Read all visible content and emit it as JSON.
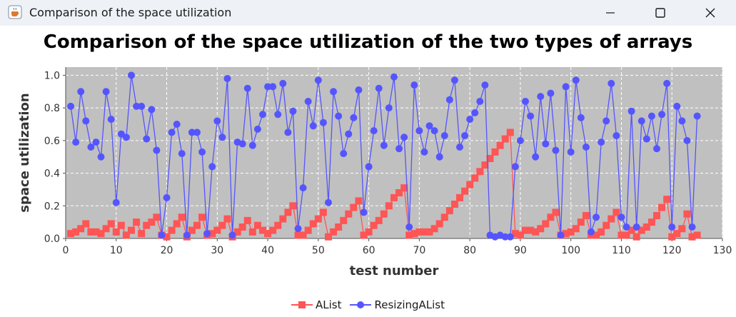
{
  "window": {
    "title": "Comparison of the space utilization",
    "icon": "java-coffee-cup-icon"
  },
  "chart_data": {
    "type": "line",
    "title": "Comparison of the space utilization of the two types of arrays",
    "xlabel": "test number",
    "ylabel": "space utilization",
    "xlim": [
      0,
      130
    ],
    "ylim": [
      0,
      1.05
    ],
    "xticks": [
      0,
      10,
      20,
      30,
      40,
      50,
      60,
      70,
      80,
      90,
      100,
      110,
      120,
      130
    ],
    "yticks": [
      0.0,
      0.2,
      0.4,
      0.6,
      0.8,
      1.0
    ],
    "grid": true,
    "legend_position": "bottom",
    "plot_background": "#c0c0c0",
    "series": [
      {
        "name": "AList",
        "color": "#ff5555",
        "marker": "square",
        "x": [
          1,
          2,
          3,
          4,
          5,
          6,
          7,
          8,
          9,
          10,
          11,
          12,
          13,
          14,
          15,
          16,
          17,
          18,
          19,
          20,
          21,
          22,
          23,
          24,
          25,
          26,
          27,
          28,
          29,
          30,
          31,
          32,
          33,
          34,
          35,
          36,
          37,
          38,
          39,
          40,
          41,
          42,
          43,
          44,
          45,
          46,
          47,
          48,
          49,
          50,
          51,
          52,
          53,
          54,
          55,
          56,
          57,
          58,
          59,
          60,
          61,
          62,
          63,
          64,
          65,
          66,
          67,
          68,
          69,
          70,
          71,
          72,
          73,
          74,
          75,
          76,
          77,
          78,
          79,
          80,
          81,
          82,
          83,
          84,
          85,
          86,
          87,
          88,
          89,
          90,
          91,
          92,
          93,
          94,
          95,
          96,
          97,
          98,
          99,
          100,
          101,
          102,
          103,
          104,
          105,
          106,
          107,
          108,
          109,
          110,
          111,
          112,
          113,
          114,
          115,
          116,
          117,
          118,
          119,
          120,
          121,
          122,
          123,
          124,
          125
        ],
        "values": [
          0.03,
          0.04,
          0.06,
          0.09,
          0.04,
          0.04,
          0.03,
          0.06,
          0.09,
          0.04,
          0.08,
          0.02,
          0.05,
          0.1,
          0.03,
          0.08,
          0.1,
          0.13,
          0.02,
          0.01,
          0.05,
          0.09,
          0.13,
          0.01,
          0.05,
          0.08,
          0.13,
          0.02,
          0.03,
          0.05,
          0.08,
          0.12,
          0.01,
          0.04,
          0.07,
          0.11,
          0.04,
          0.08,
          0.05,
          0.03,
          0.05,
          0.08,
          0.12,
          0.16,
          0.2,
          0.02,
          0.02,
          0.05,
          0.09,
          0.12,
          0.16,
          0.01,
          0.04,
          0.07,
          0.11,
          0.15,
          0.19,
          0.23,
          0.02,
          0.04,
          0.08,
          0.11,
          0.15,
          0.2,
          0.25,
          0.28,
          0.31,
          0.02,
          0.03,
          0.04,
          0.04,
          0.04,
          0.06,
          0.09,
          0.13,
          0.17,
          0.21,
          0.25,
          0.29,
          0.33,
          0.37,
          0.41,
          0.45,
          0.49,
          0.53,
          0.57,
          0.61,
          0.65,
          0.03,
          0.02,
          0.05,
          0.05,
          0.04,
          0.06,
          0.09,
          0.13,
          0.16,
          0.02,
          0.03,
          0.04,
          0.06,
          0.1,
          0.14,
          0.02,
          0.02,
          0.04,
          0.08,
          0.12,
          0.16,
          0.02,
          0.02,
          0.05,
          0.01,
          0.05,
          0.07,
          0.1,
          0.14,
          0.19,
          0.24,
          0.01,
          0.03,
          0.06,
          0.15,
          0.01,
          0.02
        ]
      },
      {
        "name": "ResizingAList",
        "color": "#5555ff",
        "marker": "circle",
        "x": [
          1,
          2,
          3,
          4,
          5,
          6,
          7,
          8,
          9,
          10,
          11,
          12,
          13,
          14,
          15,
          16,
          17,
          18,
          19,
          20,
          21,
          22,
          23,
          24,
          25,
          26,
          27,
          28,
          29,
          30,
          31,
          32,
          33,
          34,
          35,
          36,
          37,
          38,
          39,
          40,
          41,
          42,
          43,
          44,
          45,
          46,
          47,
          48,
          49,
          50,
          51,
          52,
          53,
          54,
          55,
          56,
          57,
          58,
          59,
          60,
          61,
          62,
          63,
          64,
          65,
          66,
          67,
          68,
          69,
          70,
          71,
          72,
          73,
          74,
          75,
          76,
          77,
          78,
          79,
          80,
          81,
          82,
          83,
          84,
          85,
          86,
          87,
          88,
          89,
          90,
          91,
          92,
          93,
          94,
          95,
          96,
          97,
          98,
          99,
          100,
          101,
          102,
          103,
          104,
          105,
          106,
          107,
          108,
          109,
          110,
          111,
          112,
          113,
          114,
          115,
          116,
          117,
          118,
          119,
          120,
          121,
          122,
          123,
          124,
          125
        ],
        "values": [
          0.81,
          0.59,
          0.9,
          0.72,
          0.56,
          0.59,
          0.5,
          0.9,
          0.73,
          0.22,
          0.64,
          0.62,
          1.0,
          0.81,
          0.81,
          0.61,
          0.79,
          0.54,
          0.02,
          0.25,
          0.65,
          0.7,
          0.52,
          0.02,
          0.65,
          0.65,
          0.53,
          0.03,
          0.44,
          0.72,
          0.62,
          0.98,
          0.02,
          0.59,
          0.58,
          0.92,
          0.57,
          0.67,
          0.76,
          0.93,
          0.93,
          0.76,
          0.95,
          0.65,
          0.78,
          0.06,
          0.31,
          0.84,
          0.69,
          0.97,
          0.71,
          0.22,
          0.9,
          0.75,
          0.52,
          0.64,
          0.74,
          0.91,
          0.16,
          0.44,
          0.66,
          0.92,
          0.57,
          0.8,
          0.99,
          0.55,
          0.62,
          0.07,
          0.94,
          0.66,
          0.53,
          0.69,
          0.66,
          0.5,
          0.63,
          0.85,
          0.97,
          0.56,
          0.63,
          0.73,
          0.77,
          0.84,
          0.94,
          0.02,
          0.01,
          0.02,
          0.01,
          0.01,
          0.44,
          0.6,
          0.84,
          0.75,
          0.5,
          0.87,
          0.58,
          0.89,
          0.54,
          0.02,
          0.93,
          0.53,
          0.97,
          0.74,
          0.56,
          0.04,
          0.13,
          0.59,
          0.72,
          0.95,
          0.63,
          0.13,
          0.07,
          0.78,
          0.07,
          0.72,
          0.61,
          0.75,
          0.55,
          0.76,
          0.95,
          0.07,
          0.81,
          0.72,
          0.6,
          0.07,
          0.75
        ]
      }
    ]
  }
}
